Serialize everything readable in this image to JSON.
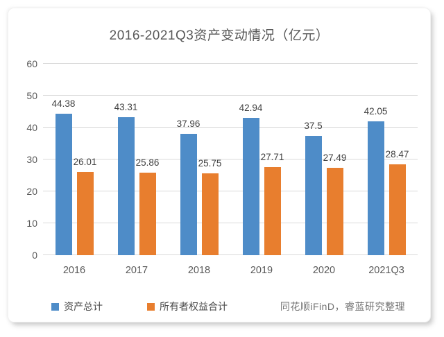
{
  "chart_data": {
    "type": "bar",
    "title": "2016-2021Q3资产变动情况（亿元）",
    "categories": [
      "2016",
      "2017",
      "2018",
      "2019",
      "2020",
      "2021Q3"
    ],
    "series": [
      {
        "name": "资产总计",
        "color": "#4E8CC8",
        "values": [
          44.38,
          43.31,
          37.96,
          42.94,
          37.5,
          42.05
        ]
      },
      {
        "name": "所有者权益合计",
        "color": "#E87E2E",
        "values": [
          26.01,
          25.86,
          25.75,
          27.71,
          27.49,
          28.47
        ]
      }
    ],
    "ylim": [
      0,
      60
    ],
    "ytick_step": 10,
    "grid": true,
    "gridline_color": "#d9d9d9",
    "axis_text_color": "#595959",
    "data_label_color": "#404040",
    "legend_position": "bottom",
    "source_note": "同花顺iFinD，睿蓝研究整理"
  }
}
